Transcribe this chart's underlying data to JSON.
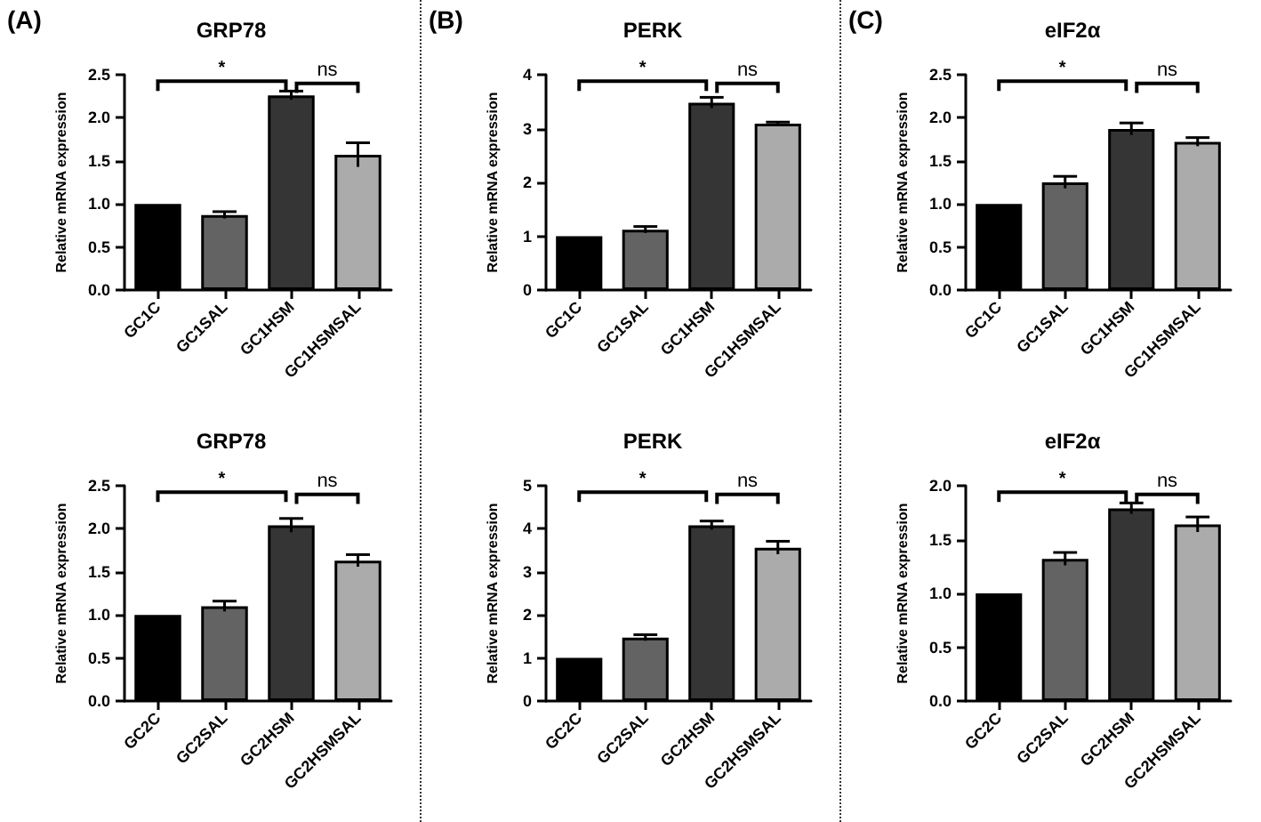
{
  "chart_data": [
    {
      "type": "bar",
      "title": "GRP78",
      "ylabel": "Relative mRNA expression",
      "categories": [
        "GC1C",
        "GC1SAL",
        "GC1HSM",
        "GC1HSMSAL"
      ],
      "values": [
        1.0,
        0.87,
        2.26,
        1.57
      ],
      "errors": [
        null,
        0.04,
        0.05,
        0.14
      ],
      "colors": [
        "#000000",
        "#636363",
        "#353535",
        "#ababab"
      ],
      "ylim": [
        0,
        2.5
      ],
      "yticks": [
        {
          "value": 0,
          "label": "0.0"
        },
        {
          "value": 0.5,
          "label": "0.5"
        },
        {
          "value": 1,
          "label": "1.0"
        },
        {
          "value": 1.5,
          "label": "1.5"
        },
        {
          "value": 2,
          "label": "2.0"
        },
        {
          "value": 2.5,
          "label": "2.5"
        }
      ],
      "annotations": [
        "(A)",
        "*",
        "ns"
      ]
    },
    {
      "type": "bar",
      "title": "PERK",
      "ylabel": "Relative mRNA expression",
      "categories": [
        "GC1C",
        "GC1SAL",
        "GC1HSM",
        "GC1HSMSAL"
      ],
      "values": [
        1.0,
        1.12,
        3.48,
        3.09
      ],
      "errors": [
        null,
        0.06,
        0.1,
        0.03
      ],
      "colors": [
        "#000000",
        "#636363",
        "#353535",
        "#ababab"
      ],
      "ylim": [
        0,
        4
      ],
      "yticks": [
        0,
        1,
        2,
        3,
        4
      ],
      "annotations": [
        "(B)",
        "*",
        "ns"
      ]
    },
    {
      "type": "bar",
      "title": "eIF2α",
      "ylabel": "Relative mRNA expression",
      "categories": [
        "GC1C",
        "GC1SAL",
        "GC1HSM",
        "GC1HSMSAL"
      ],
      "values": [
        1.0,
        1.25,
        1.87,
        1.72
      ],
      "errors": [
        null,
        0.07,
        0.07,
        0.05
      ],
      "colors": [
        "#000000",
        "#636363",
        "#353535",
        "#ababab"
      ],
      "ylim": [
        0,
        2.5
      ],
      "yticks": [
        {
          "value": 0,
          "label": "0.0"
        },
        {
          "value": 0.5,
          "label": "0.5"
        },
        {
          "value": 1,
          "label": "1.0"
        },
        {
          "value": 1.5,
          "label": "1.5"
        },
        {
          "value": 2,
          "label": "2.0"
        },
        {
          "value": 2.5,
          "label": "2.5"
        }
      ],
      "annotations": [
        "(C)",
        "*",
        "ns"
      ]
    },
    {
      "type": "bar",
      "title": "GRP78",
      "ylabel": "Relative mRNA expression",
      "categories": [
        "GC2C",
        "GC2SAL",
        "GC2HSM",
        "GC2HSMSAL"
      ],
      "values": [
        1.0,
        1.1,
        2.04,
        1.63
      ],
      "errors": [
        null,
        0.06,
        0.08,
        0.07
      ],
      "colors": [
        "#000000",
        "#636363",
        "#353535",
        "#ababab"
      ],
      "ylim": [
        0,
        2.5
      ],
      "yticks": [
        {
          "value": 0,
          "label": "0.0"
        },
        {
          "value": 0.5,
          "label": "0.5"
        },
        {
          "value": 1,
          "label": "1.0"
        },
        {
          "value": 1.5,
          "label": "1.5"
        },
        {
          "value": 2,
          "label": "2.0"
        },
        {
          "value": 2.5,
          "label": "2.5"
        }
      ],
      "annotations": [
        "*",
        "ns"
      ]
    },
    {
      "type": "bar",
      "title": "PERK",
      "ylabel": "Relative mRNA expression",
      "categories": [
        "GC2C",
        "GC2SAL",
        "GC2HSM",
        "GC2HSMSAL"
      ],
      "values": [
        1.0,
        1.47,
        4.08,
        3.56
      ],
      "errors": [
        null,
        0.07,
        0.1,
        0.15
      ],
      "colors": [
        "#000000",
        "#636363",
        "#353535",
        "#ababab"
      ],
      "ylim": [
        0,
        5
      ],
      "yticks": [
        0,
        1,
        2,
        3,
        4,
        5
      ],
      "annotations": [
        "*",
        "ns"
      ]
    },
    {
      "type": "bar",
      "title": "eIF2α",
      "ylabel": "Relative mRNA expression",
      "categories": [
        "GC2C",
        "GC2SAL",
        "GC2HSM",
        "GC2HSMSAL"
      ],
      "values": [
        1.0,
        1.32,
        1.79,
        1.64
      ],
      "errors": [
        null,
        0.06,
        0.05,
        0.07
      ],
      "colors": [
        "#000000",
        "#636363",
        "#353535",
        "#ababab"
      ],
      "ylim": [
        0,
        2
      ],
      "yticks": [
        {
          "value": 0,
          "label": "0.0"
        },
        {
          "value": 0.5,
          "label": "0.5"
        },
        {
          "value": 1,
          "label": "1.0"
        },
        {
          "value": 1.5,
          "label": "1.5"
        },
        {
          "value": 2,
          "label": "2.0"
        }
      ],
      "annotations": [
        "*",
        "ns"
      ]
    }
  ]
}
